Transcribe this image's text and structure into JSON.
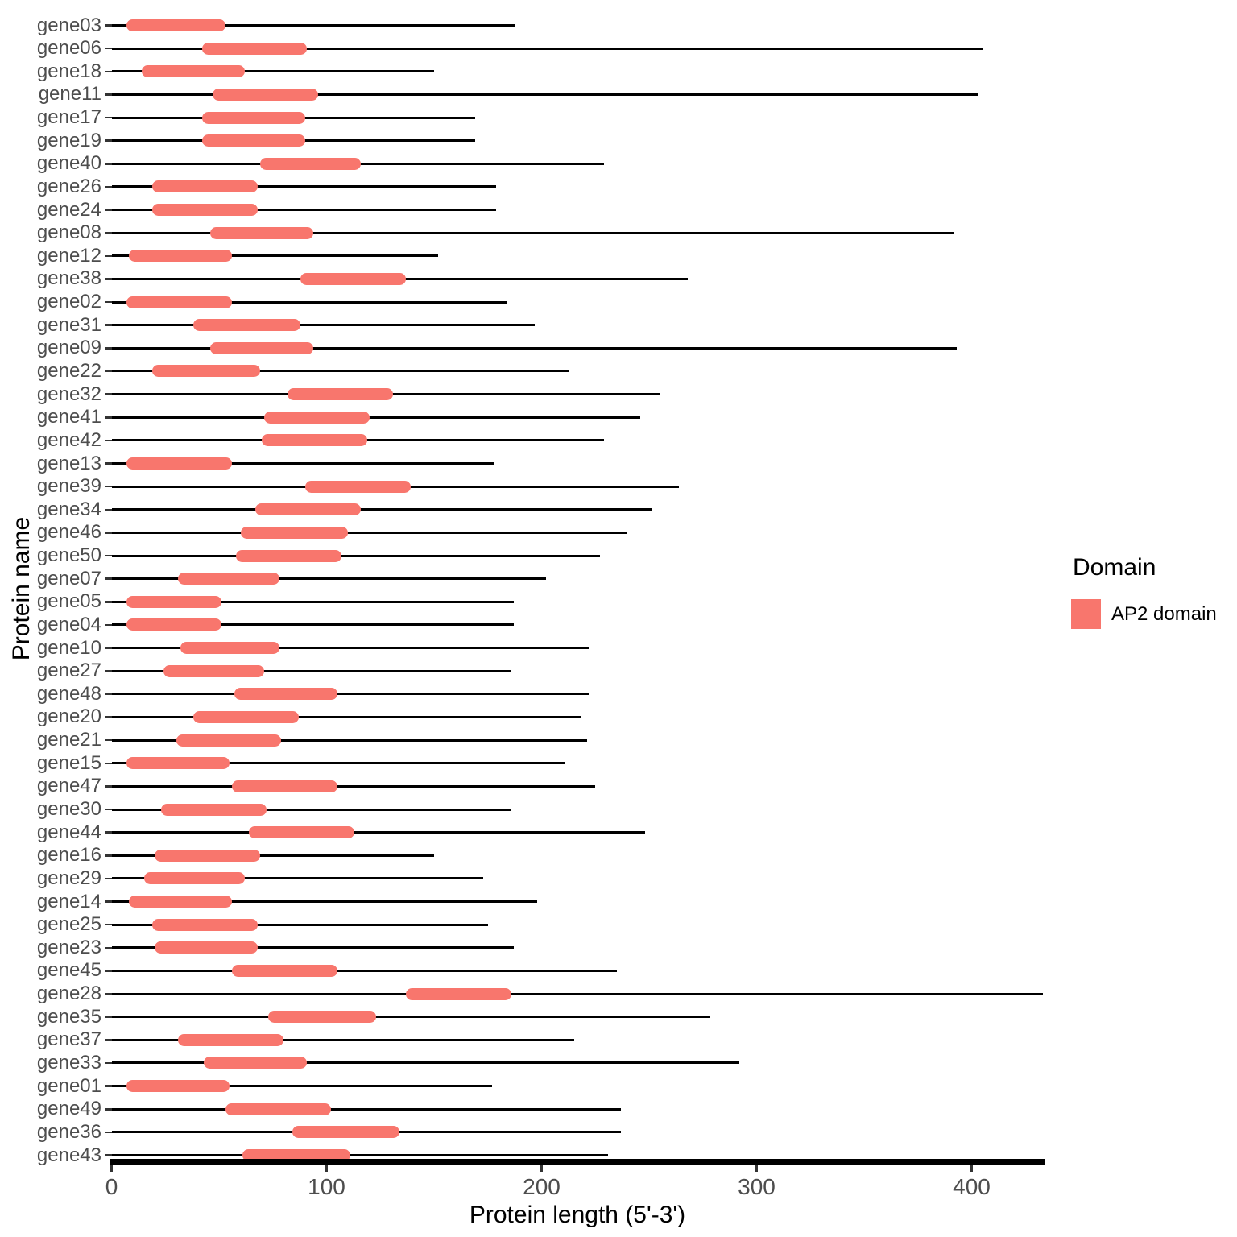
{
  "chart_data": {
    "type": "bar",
    "subtype": "protein-domain-map",
    "title": "",
    "xlabel": "Protein length (5'-3')",
    "ylabel": "Protein name",
    "xlim": [
      0,
      435
    ],
    "x_ticks": [
      0,
      100,
      200,
      300,
      400
    ],
    "grid": "off",
    "legend": {
      "title": "Domain",
      "position": "right",
      "items": [
        {
          "label": "AP2 domain",
          "color": "#F8766D"
        }
      ]
    },
    "line_color": "#000000",
    "rows": [
      {
        "gene": "gene03",
        "protein_length": 188,
        "domain_start": 7,
        "domain_end": 53
      },
      {
        "gene": "gene06",
        "protein_length": 405,
        "domain_start": 42,
        "domain_end": 91
      },
      {
        "gene": "gene18",
        "protein_length": 150,
        "domain_start": 14,
        "domain_end": 62
      },
      {
        "gene": "gene11",
        "protein_length": 403,
        "domain_start": 47,
        "domain_end": 96
      },
      {
        "gene": "gene17",
        "protein_length": 169,
        "domain_start": 42,
        "domain_end": 90
      },
      {
        "gene": "gene19",
        "protein_length": 169,
        "domain_start": 42,
        "domain_end": 90
      },
      {
        "gene": "gene40",
        "protein_length": 229,
        "domain_start": 69,
        "domain_end": 116
      },
      {
        "gene": "gene26",
        "protein_length": 179,
        "domain_start": 19,
        "domain_end": 68
      },
      {
        "gene": "gene24",
        "protein_length": 179,
        "domain_start": 19,
        "domain_end": 68
      },
      {
        "gene": "gene08",
        "protein_length": 392,
        "domain_start": 46,
        "domain_end": 94
      },
      {
        "gene": "gene12",
        "protein_length": 152,
        "domain_start": 8,
        "domain_end": 56
      },
      {
        "gene": "gene38",
        "protein_length": 268,
        "domain_start": 88,
        "domain_end": 137
      },
      {
        "gene": "gene02",
        "protein_length": 184,
        "domain_start": 7,
        "domain_end": 56
      },
      {
        "gene": "gene31",
        "protein_length": 197,
        "domain_start": 38,
        "domain_end": 88
      },
      {
        "gene": "gene09",
        "protein_length": 393,
        "domain_start": 46,
        "domain_end": 94
      },
      {
        "gene": "gene22",
        "protein_length": 213,
        "domain_start": 19,
        "domain_end": 69
      },
      {
        "gene": "gene32",
        "protein_length": 255,
        "domain_start": 82,
        "domain_end": 131
      },
      {
        "gene": "gene41",
        "protein_length": 246,
        "domain_start": 71,
        "domain_end": 120
      },
      {
        "gene": "gene42",
        "protein_length": 229,
        "domain_start": 70,
        "domain_end": 119
      },
      {
        "gene": "gene13",
        "protein_length": 178,
        "domain_start": 7,
        "domain_end": 56
      },
      {
        "gene": "gene39",
        "protein_length": 264,
        "domain_start": 90,
        "domain_end": 139
      },
      {
        "gene": "gene34",
        "protein_length": 251,
        "domain_start": 67,
        "domain_end": 116
      },
      {
        "gene": "gene46",
        "protein_length": 240,
        "domain_start": 60,
        "domain_end": 110
      },
      {
        "gene": "gene50",
        "protein_length": 227,
        "domain_start": 58,
        "domain_end": 107
      },
      {
        "gene": "gene07",
        "protein_length": 202,
        "domain_start": 31,
        "domain_end": 78
      },
      {
        "gene": "gene05",
        "protein_length": 187,
        "domain_start": 7,
        "domain_end": 51
      },
      {
        "gene": "gene04",
        "protein_length": 187,
        "domain_start": 7,
        "domain_end": 51
      },
      {
        "gene": "gene10",
        "protein_length": 222,
        "domain_start": 32,
        "domain_end": 78
      },
      {
        "gene": "gene27",
        "protein_length": 186,
        "domain_start": 24,
        "domain_end": 71
      },
      {
        "gene": "gene48",
        "protein_length": 222,
        "domain_start": 57,
        "domain_end": 105
      },
      {
        "gene": "gene20",
        "protein_length": 218,
        "domain_start": 38,
        "domain_end": 87
      },
      {
        "gene": "gene21",
        "protein_length": 221,
        "domain_start": 30,
        "domain_end": 79
      },
      {
        "gene": "gene15",
        "protein_length": 211,
        "domain_start": 7,
        "domain_end": 55
      },
      {
        "gene": "gene47",
        "protein_length": 225,
        "domain_start": 56,
        "domain_end": 105
      },
      {
        "gene": "gene30",
        "protein_length": 186,
        "domain_start": 23,
        "domain_end": 72
      },
      {
        "gene": "gene44",
        "protein_length": 248,
        "domain_start": 64,
        "domain_end": 113
      },
      {
        "gene": "gene16",
        "protein_length": 150,
        "domain_start": 20,
        "domain_end": 69
      },
      {
        "gene": "gene29",
        "protein_length": 173,
        "domain_start": 15,
        "domain_end": 62
      },
      {
        "gene": "gene14",
        "protein_length": 198,
        "domain_start": 8,
        "domain_end": 56
      },
      {
        "gene": "gene25",
        "protein_length": 175,
        "domain_start": 19,
        "domain_end": 68
      },
      {
        "gene": "gene23",
        "protein_length": 187,
        "domain_start": 20,
        "domain_end": 68
      },
      {
        "gene": "gene45",
        "protein_length": 235,
        "domain_start": 56,
        "domain_end": 105
      },
      {
        "gene": "gene28",
        "protein_length": 433,
        "domain_start": 137,
        "domain_end": 186
      },
      {
        "gene": "gene35",
        "protein_length": 278,
        "domain_start": 73,
        "domain_end": 123
      },
      {
        "gene": "gene37",
        "protein_length": 215,
        "domain_start": 31,
        "domain_end": 80
      },
      {
        "gene": "gene33",
        "protein_length": 292,
        "domain_start": 43,
        "domain_end": 91
      },
      {
        "gene": "gene01",
        "protein_length": 177,
        "domain_start": 7,
        "domain_end": 55
      },
      {
        "gene": "gene49",
        "protein_length": 237,
        "domain_start": 53,
        "domain_end": 102
      },
      {
        "gene": "gene36",
        "protein_length": 237,
        "domain_start": 84,
        "domain_end": 134
      },
      {
        "gene": "gene43",
        "protein_length": 231,
        "domain_start": 61,
        "domain_end": 111
      }
    ]
  }
}
